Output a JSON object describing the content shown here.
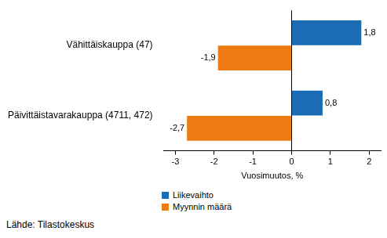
{
  "chart_data": {
    "type": "bar",
    "orientation": "horizontal",
    "categories": [
      "Vähittäiskauppa (47)",
      "Päivittäistavarakauppa (4711, 472)"
    ],
    "series": [
      {
        "name": "Liikevaihto",
        "color": "#1a6db5",
        "values": [
          1.8,
          0.8
        ],
        "value_labels": [
          "1,8",
          "0,8"
        ]
      },
      {
        "name": "Myynnin määrä",
        "color": "#ee7a12",
        "values": [
          -1.9,
          -2.7
        ],
        "value_labels": [
          "-1,9",
          "-2,7"
        ]
      }
    ],
    "xlabel": "Vuosimuutos, %",
    "xlim": [
      -3.3,
      2.3
    ],
    "xticks": [
      -3,
      -2,
      -1,
      0,
      1,
      2
    ],
    "grid": false,
    "data_labels": true,
    "legend": "bottom",
    "source": "Lähde: Tilastokeskus"
  }
}
